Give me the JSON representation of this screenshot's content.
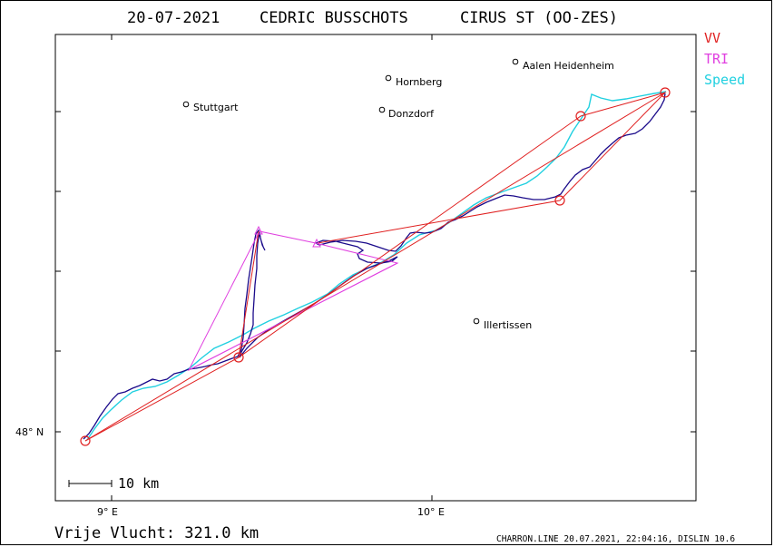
{
  "header": {
    "date": "20-07-2021",
    "pilot": "CEDRIC  BUSSCHOTS",
    "glider": "CIRUS ST (OO-ZES)"
  },
  "legend": [
    {
      "label": "VV",
      "color": "#e02020"
    },
    {
      "label": "TRI",
      "color": "#e040e0"
    },
    {
      "label": "Speed",
      "color": "#20d0e0"
    }
  ],
  "track_color": "#1a0a8a",
  "towns": [
    {
      "name": "Aalen Heidenheim"
    },
    {
      "name": "Hornberg"
    },
    {
      "name": "Stuttgart"
    },
    {
      "name": "Donzdorf"
    },
    {
      "name": "Illertissen"
    }
  ],
  "axes": {
    "x_ticks": [
      "9° E",
      "10° E"
    ],
    "y_ticks": [
      "48° N"
    ]
  },
  "scale_bar": {
    "label": "10  km"
  },
  "footer": {
    "distance": "Vrije Vlucht:  321.0 km",
    "credits": "CHARRON.LINE 20.07.2021, 22:04:16, DISLIN 10.6"
  }
}
